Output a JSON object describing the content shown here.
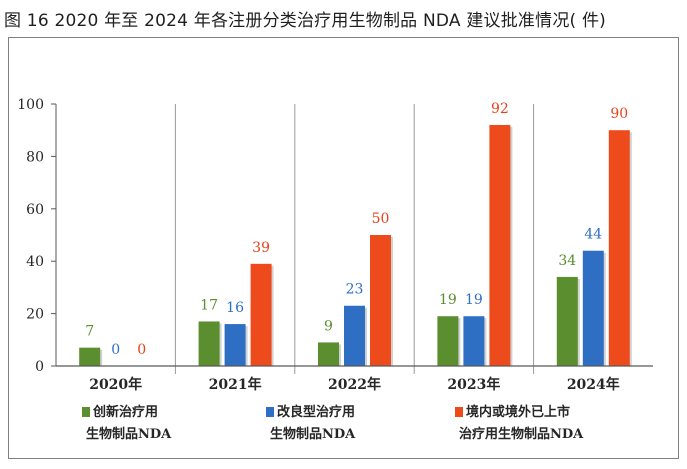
{
  "figure": {
    "title": "图 16   2020 年至 2024 年各注册分类治疗用生物制品 NDA 建议批准情况( 件)"
  },
  "legend": [
    {
      "line1": "创新治疗用",
      "line2": "生物制品NDA"
    },
    {
      "line1": "改良型治疗用",
      "line2": "生物制品NDA"
    },
    {
      "line1": "境内或境外已上市",
      "line2": "治疗用生物制品NDA"
    }
  ],
  "chart_data": {
    "type": "bar",
    "categories": [
      "2020年",
      "2021年",
      "2022年",
      "2023年",
      "2024年"
    ],
    "series": [
      {
        "name": "创新治疗用生物制品NDA",
        "color": "#5a8e2e",
        "label_color": "#5a8e2e",
        "values": [
          7,
          17,
          9,
          19,
          34
        ]
      },
      {
        "name": "改良型治疗用生物制品NDA",
        "color": "#2e6fc4",
        "label_color": "#2e6fc4",
        "values": [
          0,
          16,
          23,
          19,
          44
        ]
      },
      {
        "name": "境内或境外已上市治疗用生物制品NDA",
        "color": "#ee4b1c",
        "label_color": "#e8401a",
        "values": [
          0,
          39,
          50,
          92,
          90
        ]
      }
    ],
    "yticks": [
      0,
      20,
      40,
      60,
      80,
      100
    ],
    "ylim": [
      0,
      100
    ],
    "xlabel": "",
    "ylabel": "",
    "grid": false,
    "category_separators": true,
    "data_labels": true,
    "legend_position": "bottom"
  }
}
